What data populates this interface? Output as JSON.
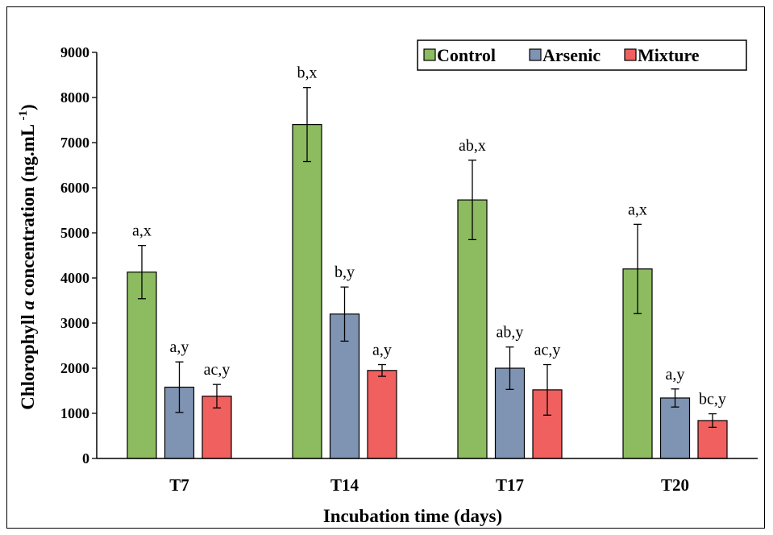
{
  "chart_data": {
    "type": "bar",
    "title": "",
    "xlabel": "Incubation time (days)",
    "ylabel_prefix": "Chlorophyll ",
    "ylabel_italic": "a",
    "ylabel_mid": " concentration (ng.mL ",
    "ylabel_sup": "-1",
    "ylabel_suffix": ")",
    "ylim": [
      0,
      9000
    ],
    "yticks": [
      0,
      1000,
      2000,
      3000,
      4000,
      5000,
      6000,
      7000,
      8000,
      9000
    ],
    "grid": false,
    "legend_position": "top-right",
    "categories": [
      "T7",
      "T14",
      "T17",
      "T20"
    ],
    "series": [
      {
        "name": "Control",
        "color": "#8cbb60",
        "values": [
          4130,
          7400,
          5730,
          4200
        ],
        "errors": [
          590,
          820,
          880,
          990
        ],
        "annotations": [
          "a,x",
          "b,x",
          "ab,x",
          "a,x"
        ]
      },
      {
        "name": "Arsenic",
        "color": "#7f93b2",
        "values": [
          1580,
          3200,
          2000,
          1340
        ],
        "errors": [
          560,
          600,
          470,
          200
        ],
        "annotations": [
          "a,y",
          "b,y",
          "ab,y",
          "a,y"
        ]
      },
      {
        "name": "Mixture",
        "color": "#f0605e",
        "values": [
          1380,
          1950,
          1520,
          840
        ],
        "errors": [
          260,
          130,
          560,
          150
        ],
        "annotations": [
          "ac,y",
          "a,y",
          "ac,y",
          "bc,y"
        ]
      }
    ]
  }
}
